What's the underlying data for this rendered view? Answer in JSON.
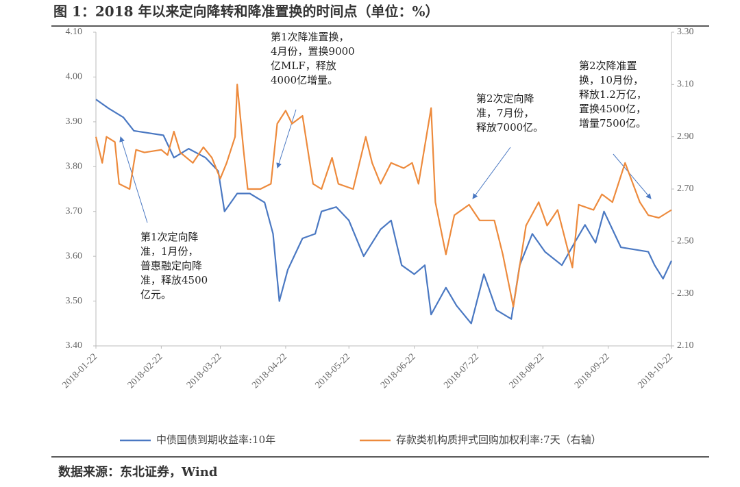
{
  "chart_data": {
    "type": "line",
    "title": "图 1：2018 年以来定向降转和降准置换的时间点（单位：%）",
    "source": "数据来源：东北证券，Wind",
    "xlim": [
      "2018-01-22",
      "2018-10-22"
    ],
    "xticks": [
      "2018-01-22",
      "2018-02-22",
      "2018-03-22",
      "2018-04-22",
      "2018-05-22",
      "2018-06-22",
      "2018-07-22",
      "2018-08-22",
      "2018-09-22",
      "2018-10-22"
    ],
    "ylim": [
      3.4,
      4.1
    ],
    "yticks": [
      {
        "value": 3.4,
        "label": "3.40"
      },
      {
        "value": 3.5,
        "label": "3.50"
      },
      {
        "value": 3.6,
        "label": "3.60"
      },
      {
        "value": 3.7,
        "label": "3.70"
      },
      {
        "value": 3.8,
        "label": "3.80"
      },
      {
        "value": 3.9,
        "label": "3.90"
      },
      {
        "value": 4.0,
        "label": "4.00"
      },
      {
        "value": 4.1,
        "label": "4.10"
      }
    ],
    "y2lim": [
      2.1,
      3.3
    ],
    "y2ticks": [
      {
        "value": 2.1,
        "label": "2.10"
      },
      {
        "value": 2.3,
        "label": "2.30"
      },
      {
        "value": 2.5,
        "label": "2.50"
      },
      {
        "value": 2.7,
        "label": "2.70"
      },
      {
        "value": 2.9,
        "label": "2.90"
      },
      {
        "value": 3.1,
        "label": "3.10"
      },
      {
        "value": 3.3,
        "label": "3.30"
      }
    ],
    "grid": false,
    "series": [
      {
        "name": "中债国债到期收益率:10年",
        "color": "#4a78c2",
        "x": [
          "2018-01-22",
          "2018-01-28",
          "2018-02-04",
          "2018-02-09",
          "2018-02-23",
          "2018-02-28",
          "2018-03-07",
          "2018-03-15",
          "2018-03-21",
          "2018-03-24",
          "2018-03-30",
          "2018-04-05",
          "2018-04-12",
          "2018-04-16",
          "2018-04-19",
          "2018-04-23",
          "2018-04-30",
          "2018-05-06",
          "2018-05-09",
          "2018-05-16",
          "2018-05-22",
          "2018-05-29",
          "2018-06-06",
          "2018-06-11",
          "2018-06-16",
          "2018-06-22",
          "2018-06-27",
          "2018-06-30",
          "2018-07-07",
          "2018-07-12",
          "2018-07-19",
          "2018-07-25",
          "2018-07-31",
          "2018-08-07",
          "2018-08-11",
          "2018-08-17",
          "2018-08-23",
          "2018-08-31",
          "2018-09-06",
          "2018-09-11",
          "2018-09-16",
          "2018-09-20",
          "2018-09-28",
          "2018-10-11",
          "2018-10-14",
          "2018-10-18",
          "2018-10-22"
        ],
        "values": [
          3.95,
          3.93,
          3.91,
          3.88,
          3.87,
          3.82,
          3.84,
          3.82,
          3.79,
          3.7,
          3.74,
          3.74,
          3.72,
          3.65,
          3.5,
          3.57,
          3.64,
          3.65,
          3.7,
          3.71,
          3.68,
          3.6,
          3.66,
          3.68,
          3.58,
          3.56,
          3.58,
          3.47,
          3.53,
          3.49,
          3.45,
          3.56,
          3.48,
          3.46,
          3.58,
          3.65,
          3.61,
          3.58,
          3.63,
          3.67,
          3.63,
          3.7,
          3.62,
          3.61,
          3.58,
          3.55,
          3.59
        ]
      },
      {
        "name": "存款类机构质押式回购加权利率:7天（右轴）",
        "color": "#ed8a3c",
        "axis": "y2",
        "x": [
          "2018-01-22",
          "2018-01-25",
          "2018-01-27",
          "2018-01-31",
          "2018-02-02",
          "2018-02-07",
          "2018-02-10",
          "2018-02-14",
          "2018-02-22",
          "2018-02-25",
          "2018-02-28",
          "2018-03-03",
          "2018-03-09",
          "2018-03-14",
          "2018-03-18",
          "2018-03-22",
          "2018-03-25",
          "2018-03-29",
          "2018-03-30",
          "2018-04-02",
          "2018-04-04",
          "2018-04-10",
          "2018-04-15",
          "2018-04-18",
          "2018-04-22",
          "2018-04-25",
          "2018-04-30",
          "2018-05-05",
          "2018-05-09",
          "2018-05-14",
          "2018-05-17",
          "2018-05-24",
          "2018-05-30",
          "2018-06-02",
          "2018-06-06",
          "2018-06-11",
          "2018-06-17",
          "2018-06-21",
          "2018-06-24",
          "2018-06-30",
          "2018-07-02",
          "2018-07-07",
          "2018-07-11",
          "2018-07-18",
          "2018-07-23",
          "2018-07-30",
          "2018-08-03",
          "2018-08-08",
          "2018-08-14",
          "2018-08-20",
          "2018-08-24",
          "2018-08-29",
          "2018-09-05",
          "2018-09-08",
          "2018-09-15",
          "2018-09-19",
          "2018-09-24",
          "2018-09-30",
          "2018-10-07",
          "2018-10-11",
          "2018-10-16",
          "2018-10-22"
        ],
        "values": [
          2.9,
          2.8,
          2.9,
          2.88,
          2.72,
          2.7,
          2.85,
          2.84,
          2.85,
          2.83,
          2.92,
          2.84,
          2.8,
          2.86,
          2.82,
          2.74,
          2.8,
          2.9,
          3.1,
          2.85,
          2.7,
          2.7,
          2.72,
          2.95,
          3.0,
          2.95,
          2.98,
          2.72,
          2.7,
          2.82,
          2.72,
          2.7,
          2.9,
          2.8,
          2.72,
          2.8,
          2.78,
          2.8,
          2.72,
          3.01,
          2.65,
          2.45,
          2.6,
          2.64,
          2.58,
          2.58,
          2.45,
          2.25,
          2.56,
          2.65,
          2.56,
          2.62,
          2.4,
          2.64,
          2.62,
          2.68,
          2.65,
          2.8,
          2.65,
          2.6,
          2.59,
          2.62
        ]
      }
    ],
    "annotations": [
      {
        "lines": [
          "第1次定向降",
          "准，1月份，",
          "普惠融定向降",
          "准，释放4500",
          "亿元。"
        ]
      },
      {
        "lines": [
          "第1次降准置换，",
          "4月份，置换9000",
          "亿MLF，释放",
          "4000亿增量。"
        ]
      },
      {
        "lines": [
          "第2次定向降",
          "准，7月份，",
          "释放7000亿。"
        ]
      },
      {
        "lines": [
          "第2次降准置",
          "换，10月份，",
          "释放1.2万亿，",
          "置换4500亿，",
          "增量7500亿。"
        ]
      }
    ]
  }
}
